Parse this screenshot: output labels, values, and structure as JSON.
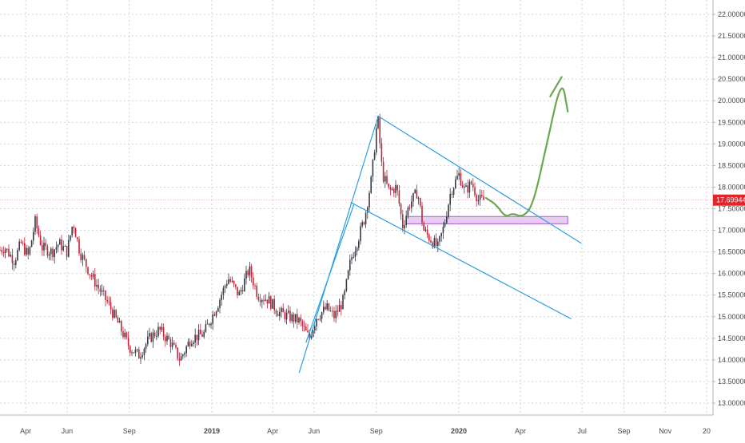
{
  "chart_data": {
    "type": "candlestick",
    "title": "",
    "xlabel": "",
    "ylabel": "",
    "ylim": [
      12.7,
      22.25
    ],
    "x_axis_ticks": [
      {
        "date": "2018-04-01",
        "label": "Apr"
      },
      {
        "date": "2018-06-01",
        "label": "Jun"
      },
      {
        "date": "2018-09-01",
        "label": "Sep"
      },
      {
        "date": "2019-01-01",
        "label": "2019"
      },
      {
        "date": "2019-04-01",
        "label": "Apr"
      },
      {
        "date": "2019-06-01",
        "label": "Jun"
      },
      {
        "date": "2019-09-01",
        "label": "Sep"
      },
      {
        "date": "2020-01-01",
        "label": "2020"
      },
      {
        "date": "2020-04-01",
        "label": "Apr"
      },
      {
        "date": "2020-07-01",
        "label": "Jul"
      },
      {
        "date": "2020-09-01",
        "label": "Sep"
      },
      {
        "date": "2020-11-01",
        "label": "Nov"
      },
      {
        "date": "2021-01-01",
        "label": "20"
      }
    ],
    "y_axis_ticks": [
      "13.00000",
      "13.50000",
      "14.00000",
      "14.50000",
      "15.00000",
      "15.50000",
      "16.00000",
      "16.50000",
      "17.00000",
      "17.50000",
      "18.00000",
      "18.50000",
      "19.00000",
      "19.50000",
      "20.00000",
      "20.50000",
      "21.00000",
      "21.50000",
      "22.00000"
    ],
    "grid": true,
    "last_price": "17.69944",
    "price_path": [
      [
        "2018-02-15",
        16.5
      ],
      [
        "2018-03-01",
        16.6
      ],
      [
        "2018-03-15",
        16.3
      ],
      [
        "2018-03-25",
        16.7
      ],
      [
        "2018-04-05",
        16.4
      ],
      [
        "2018-04-15",
        17.2
      ],
      [
        "2018-04-25",
        16.6
      ],
      [
        "2018-05-10",
        16.5
      ],
      [
        "2018-05-20",
        16.7
      ],
      [
        "2018-06-01",
        16.5
      ],
      [
        "2018-06-10",
        17.2
      ],
      [
        "2018-06-20",
        16.5
      ],
      [
        "2018-07-05",
        16.0
      ],
      [
        "2018-07-20",
        15.6
      ],
      [
        "2018-08-01",
        15.3
      ],
      [
        "2018-08-20",
        14.7
      ],
      [
        "2018-09-01",
        14.3
      ],
      [
        "2018-09-15",
        14.1
      ],
      [
        "2018-10-01",
        14.5
      ],
      [
        "2018-10-15",
        14.7
      ],
      [
        "2018-11-01",
        14.4
      ],
      [
        "2018-11-15",
        14.0
      ],
      [
        "2018-12-01",
        14.5
      ],
      [
        "2018-12-20",
        14.6
      ],
      [
        "2019-01-10",
        15.3
      ],
      [
        "2019-01-25",
        15.9
      ],
      [
        "2019-02-10",
        15.5
      ],
      [
        "2019-02-25",
        16.1
      ],
      [
        "2019-03-10",
        15.5
      ],
      [
        "2019-03-25",
        15.4
      ],
      [
        "2019-04-10",
        15.1
      ],
      [
        "2019-04-25",
        15.0
      ],
      [
        "2019-05-10",
        14.9
      ],
      [
        "2019-05-25",
        14.5
      ],
      [
        "2019-06-05",
        15.0
      ],
      [
        "2019-06-20",
        15.2
      ],
      [
        "2019-07-01",
        15.0
      ],
      [
        "2019-07-15",
        15.4
      ],
      [
        "2019-07-25",
        16.3
      ],
      [
        "2019-08-05",
        16.8
      ],
      [
        "2019-08-15",
        17.3
      ],
      [
        "2019-08-25",
        18.2
      ],
      [
        "2019-09-03",
        19.65
      ],
      [
        "2019-09-10",
        18.3
      ],
      [
        "2019-09-20",
        17.9
      ],
      [
        "2019-10-01",
        18.0
      ],
      [
        "2019-10-10",
        17.1
      ],
      [
        "2019-10-20",
        17.6
      ],
      [
        "2019-11-01",
        17.9
      ],
      [
        "2019-11-10",
        17.0
      ],
      [
        "2019-11-20",
        16.8
      ],
      [
        "2019-12-01",
        16.6
      ],
      [
        "2019-12-10",
        17.1
      ],
      [
        "2019-12-20",
        17.9
      ],
      [
        "2020-01-01",
        18.3
      ],
      [
        "2020-01-10",
        17.9
      ],
      [
        "2020-01-20",
        18.1
      ],
      [
        "2020-01-30",
        17.7
      ],
      [
        "2020-02-08",
        17.7
      ]
    ],
    "annotations": {
      "channel_upper_line": {
        "start": [
          "2019-09-03",
          19.65
        ],
        "end": [
          "2020-06-30",
          16.7
        ]
      },
      "channel_lower_line": {
        "start": [
          "2019-07-25",
          17.65
        ],
        "end": [
          "2020-06-15",
          14.95
        ]
      },
      "rally_line_1": {
        "start": [
          "2019-05-10",
          13.7
        ],
        "end": [
          "2019-09-03",
          19.6
        ]
      },
      "rally_line_2": {
        "start": [
          "2019-05-20",
          14.4
        ],
        "end": [
          "2019-07-30",
          17.6
        ]
      },
      "support_zone": {
        "x_start": "2019-10-15",
        "x_end": "2020-06-10",
        "y_low": 17.15,
        "y_high": 17.32
      },
      "projection_path": [
        [
          "2020-02-10",
          17.75
        ],
        [
          "2020-02-25",
          17.6
        ],
        [
          "2020-03-10",
          17.3
        ],
        [
          "2020-03-20",
          17.4
        ],
        [
          "2020-04-05",
          17.3
        ],
        [
          "2020-04-20",
          17.6
        ],
        [
          "2020-05-10",
          19.0
        ],
        [
          "2020-06-01",
          20.55
        ],
        [
          "2020-06-10",
          19.75
        ]
      ],
      "projection_arrowhead": [
        [
          "2020-05-15",
          20.1
        ],
        [
          "2020-06-01",
          20.55
        ]
      ]
    },
    "colors": {
      "up": "#363a45",
      "down": "#c0283a",
      "trendline": "#2b9fe0",
      "projection": "#6aa84f",
      "zone_fill": "#e6c8f0",
      "zone_stroke": "#9c4fc8",
      "price_tag": "#e0252b",
      "grid": "#d0d3d9",
      "axis_text": "#4a4a4a"
    }
  }
}
